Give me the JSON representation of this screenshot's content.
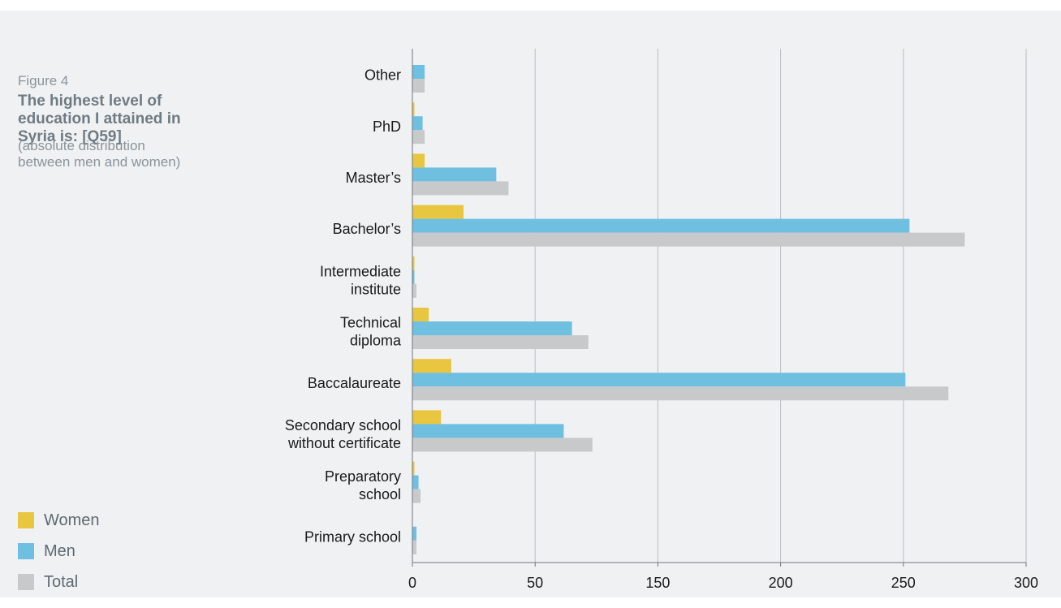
{
  "figure": {
    "label": "Figure 4",
    "title": "The highest level of education I attained in Syria is: [Q59]",
    "subtitle": "(absolute distribution between men and women)"
  },
  "legend": [
    {
      "name": "Women",
      "color": "#e8c63f"
    },
    {
      "name": "Men",
      "color": "#6fbfe0"
    },
    {
      "name": "Total",
      "color": "#c8c9cb"
    }
  ],
  "chart_data": {
    "type": "bar",
    "orientation": "horizontal",
    "categories": [
      [
        "Other"
      ],
      [
        "PhD"
      ],
      [
        "Master’s"
      ],
      [
        "Bachelor’s"
      ],
      [
        "Intermediate",
        "institute"
      ],
      [
        "Technical",
        "diploma"
      ],
      [
        "Baccalaureate"
      ],
      [
        "Secondary school",
        "without certificate"
      ],
      [
        "Preparatory",
        "school"
      ],
      [
        "Primary school"
      ]
    ],
    "series": [
      {
        "name": "Women",
        "color": "#e8c63f",
        "values": [
          0,
          1,
          6,
          25,
          1,
          8,
          19,
          14,
          1,
          0
        ]
      },
      {
        "name": "Men",
        "color": "#6fbfe0",
        "values": [
          6,
          5,
          41,
          243,
          1,
          78,
          241,
          74,
          3,
          2
        ]
      },
      {
        "name": "Total",
        "color": "#c8c9cb",
        "values": [
          6,
          6,
          47,
          270,
          2,
          86,
          262,
          88,
          4,
          2
        ]
      }
    ],
    "x_tick_labels": [
      "0",
      "50",
      "150",
      "200",
      "250",
      "300"
    ],
    "xlim": [
      0,
      300
    ],
    "grid": "vertical"
  }
}
